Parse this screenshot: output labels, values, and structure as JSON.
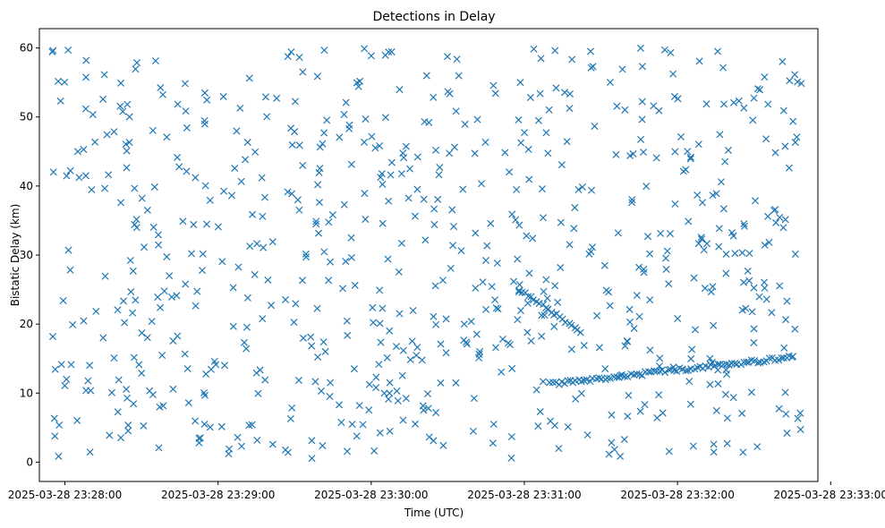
{
  "chart_data": {
    "type": "scatter",
    "title": "Detections in Delay",
    "xlabel": "Time (UTC)",
    "ylabel": "Bistatic Delay (km)",
    "marker": "x",
    "color": "#1f77b4",
    "xlim": [
      "2025-03-28 23:27:50",
      "2025-03-28 23:32:55"
    ],
    "ylim": [
      -2.8,
      62.8
    ],
    "x_ticks": [
      "2025-03-28 23:28:00",
      "2025-03-28 23:29:00",
      "2025-03-28 23:30:00",
      "2025-03-28 23:31:00",
      "2025-03-28 23:32:00",
      "2025-03-28 23:33:00"
    ],
    "y_ticks": [
      0,
      10,
      20,
      30,
      40,
      50,
      60
    ],
    "grid": false,
    "legend": "none",
    "series": [
      {
        "x_start": "2025-03-28 23:27:55",
        "x_end": "2025-03-28 23:32:49",
        "y_range": [
          0.5,
          60
        ],
        "count": 720,
        "seed": 1337,
        "description": "randomly scattered detections across full delay range"
      }
    ],
    "tracks": [
      {
        "t_from": "2025-03-28 23:31:10",
        "t_to": "2025-03-28 23:32:45",
        "y_from": 11.3,
        "y_to": 15.2,
        "count": 85
      },
      {
        "t_from": "2025-03-28 23:30:58",
        "t_to": "2025-03-28 23:31:22",
        "y_from": 25.0,
        "y_to": 19.0,
        "count": 22
      }
    ]
  }
}
